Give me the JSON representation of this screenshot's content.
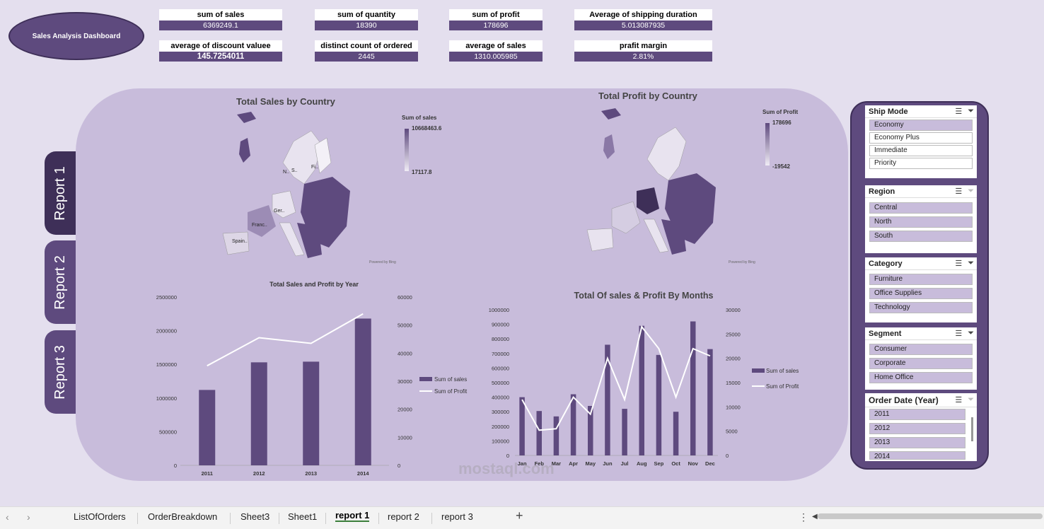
{
  "dashboard_title": "Sales Analysis Dashboard",
  "kpis": [
    {
      "label": "sum of sales",
      "value": "6369249.1"
    },
    {
      "label": "sum of quantity",
      "value": "18390"
    },
    {
      "label": "sum of profit",
      "value": "178696"
    },
    {
      "label": "Average of shipping duration",
      "value": "5.013087935"
    },
    {
      "label": "average of discount valuee",
      "value": "145.7254011"
    },
    {
      "label": "distinct count of ordered",
      "value": "2445"
    },
    {
      "label": "average of sales",
      "value": "1310.005985"
    },
    {
      "label": "prafit margin",
      "value": "2.81%"
    }
  ],
  "report_tabs": [
    "Report 1",
    "Report 2",
    "Report 3"
  ],
  "maps": {
    "sales": {
      "title": "Total Sales by Country",
      "legend_title": "Sum of sales",
      "max": "10668463.6",
      "min": "17117.8",
      "labels": [
        "Fi..",
        "N..",
        "S..",
        "Ger..",
        "Franc..",
        "Spain.."
      ],
      "credit": "Powered by Bing"
    },
    "profit": {
      "title": "Total Profit by Country",
      "legend_title": "Sum of Profit",
      "max": "178696",
      "min": "-19542",
      "credit": "Powered by Bing"
    }
  },
  "chart_data": [
    {
      "type": "bar",
      "title": "Total Sales and Profit by Year",
      "categories": [
        "2011",
        "2012",
        "2013",
        "2014"
      ],
      "series": [
        {
          "name": "Sum of sales",
          "type": "bar",
          "axis": "left",
          "values": [
            1120000,
            1530000,
            1540000,
            2180000
          ]
        },
        {
          "name": "Sum of Profit",
          "type": "line",
          "axis": "right",
          "values": [
            35500,
            45500,
            43500,
            54000
          ]
        }
      ],
      "ylim": [
        0,
        2500000
      ],
      "y2lim": [
        0,
        60000
      ],
      "yticks": [
        "0",
        "500000",
        "1000000",
        "1500000",
        "2000000",
        "2500000"
      ],
      "y2ticks": [
        "0",
        "10000",
        "20000",
        "30000",
        "40000",
        "50000",
        "60000"
      ],
      "legend": "right"
    },
    {
      "type": "bar",
      "title": "Total Of sales & Profit By Months",
      "categories": [
        "Jan",
        "Feb",
        "Mar",
        "Apr",
        "May",
        "Jun",
        "Jul",
        "Aug",
        "Sep",
        "Oct",
        "Nov",
        "Dec"
      ],
      "series": [
        {
          "name": "Sum of sales",
          "type": "bar",
          "axis": "left",
          "values": [
            400000,
            305000,
            268000,
            420000,
            340000,
            760000,
            320000,
            890000,
            690000,
            300000,
            920000,
            730000
          ]
        },
        {
          "name": "Sum of Profit",
          "type": "line",
          "axis": "right",
          "values": [
            11500,
            5200,
            5500,
            12000,
            8500,
            20000,
            11500,
            26500,
            22000,
            12000,
            22000,
            20500
          ]
        }
      ],
      "ylim": [
        0,
        1000000
      ],
      "y2lim": [
        0,
        30000
      ],
      "yticks": [
        "0",
        "100000",
        "200000",
        "300000",
        "400000",
        "500000",
        "600000",
        "700000",
        "800000",
        "900000",
        "1000000"
      ],
      "y2ticks": [
        "0",
        "5000",
        "10000",
        "15000",
        "20000",
        "25000",
        "30000"
      ],
      "legend": "right"
    }
  ],
  "slicers": {
    "ship_mode": {
      "title": "Ship Mode",
      "items": [
        "Economy",
        "Economy Plus",
        "Immediate",
        "Priority"
      ]
    },
    "region": {
      "title": "Region",
      "items": [
        "Central",
        "North",
        "South"
      ]
    },
    "category": {
      "title": "Category",
      "items": [
        "Furniture",
        "Office Supplies",
        "Technology"
      ]
    },
    "segment": {
      "title": "Segment",
      "items": [
        "Consumer",
        "Corporate",
        "Home Office"
      ]
    },
    "order_date": {
      "title": "Order Date (Year)",
      "items": [
        "2011",
        "2012",
        "2013",
        "2014"
      ]
    }
  },
  "sheets": [
    "ListOfOrders",
    "OrderBreakdown",
    "Sheet3",
    "Sheet1",
    "report 1",
    "report 2",
    "report 3"
  ],
  "active_sheet": "report 1",
  "watermark": "mostaql.com",
  "colors": {
    "accent": "#5e4a7e",
    "accent_dark": "#3e2f58",
    "panel": "#c8bcdb",
    "background": "#e4dfee"
  }
}
